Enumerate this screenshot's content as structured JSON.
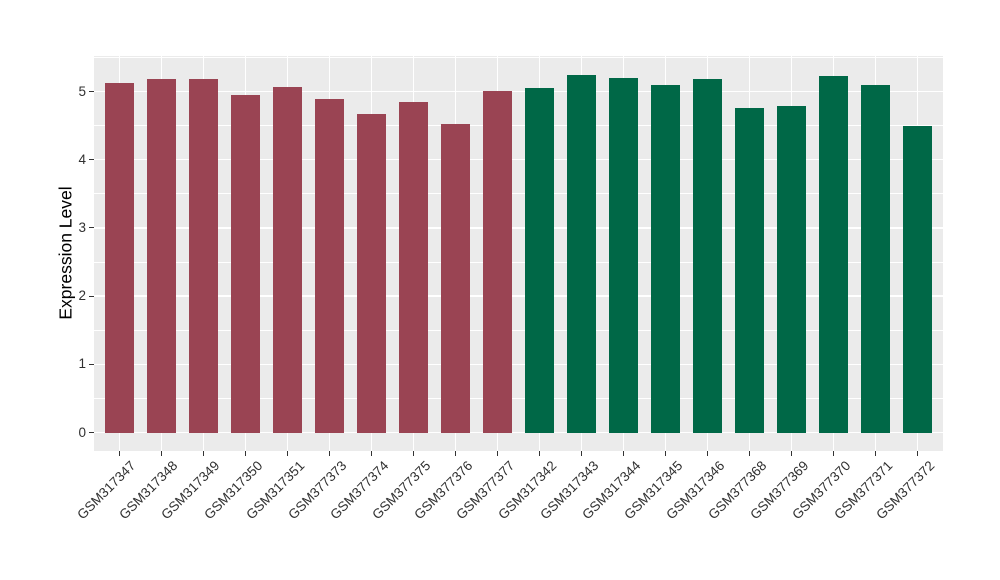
{
  "chart_data": {
    "type": "bar",
    "title": "",
    "xlabel": "",
    "ylabel": "Expression Level",
    "ylim": [
      0,
      5.25
    ],
    "yticks": [
      0,
      1,
      2,
      3,
      4,
      5
    ],
    "minor_yticks": [
      0.5,
      1.5,
      2.5,
      3.5,
      4.5,
      5.5
    ],
    "grid": "on",
    "legend": "none",
    "categories": [
      "GSM317347",
      "GSM317348",
      "GSM317349",
      "GSM317350",
      "GSM317351",
      "GSM377373",
      "GSM377374",
      "GSM377375",
      "GSM377376",
      "GSM377377",
      "GSM317342",
      "GSM317343",
      "GSM317344",
      "GSM317345",
      "GSM317346",
      "GSM377368",
      "GSM377369",
      "GSM377370",
      "GSM377371",
      "GSM377372"
    ],
    "values": [
      5.13,
      5.19,
      5.18,
      4.95,
      5.07,
      4.89,
      4.67,
      4.84,
      4.52,
      5.01,
      5.05,
      5.24,
      5.2,
      5.1,
      5.18,
      4.76,
      4.79,
      5.22,
      5.09,
      4.5
    ],
    "groups": [
      "a",
      "a",
      "a",
      "a",
      "a",
      "a",
      "a",
      "a",
      "a",
      "a",
      "b",
      "b",
      "b",
      "b",
      "b",
      "b",
      "b",
      "b",
      "b",
      "b"
    ],
    "colors": {
      "group_a": "#9A4453",
      "group_b": "#006847",
      "panel_bg": "#EBEBEB",
      "grid": "#FFFFFF",
      "tick_mark": "#333333",
      "tick_label": "#303030",
      "axis_title": "#000000"
    }
  }
}
